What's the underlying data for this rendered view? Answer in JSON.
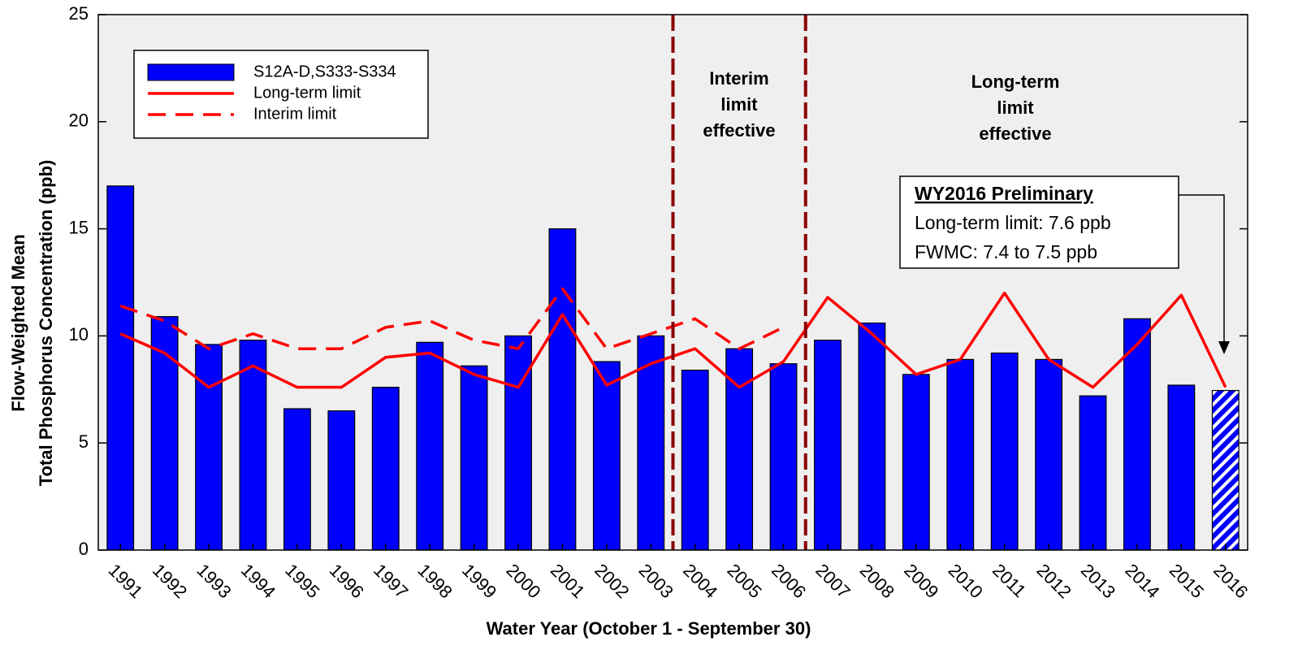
{
  "chart_data": {
    "type": "bar",
    "y_label": [
      "Flow-Weighted Mean",
      "Total Phosphorus Concentration (ppb)"
    ],
    "x_label": "Water Year (October 1 - September 30)",
    "categories": [
      "1991",
      "1992",
      "1993",
      "1994",
      "1995",
      "1996",
      "1997",
      "1998",
      "1999",
      "2000",
      "2001",
      "2002",
      "2003",
      "2004",
      "2005",
      "2006",
      "2007",
      "2008",
      "2009",
      "2010",
      "2011",
      "2012",
      "2013",
      "2014",
      "2015",
      "2016"
    ],
    "series": [
      {
        "name": "S12A-D,S333-S334",
        "type": "bar",
        "color": "#0000ff",
        "hatched_last": true,
        "values": [
          17.0,
          10.9,
          9.6,
          9.8,
          6.6,
          6.5,
          7.6,
          9.7,
          8.6,
          10.0,
          15.0,
          8.8,
          10.0,
          8.4,
          9.4,
          8.7,
          9.8,
          10.6,
          8.2,
          8.9,
          9.2,
          8.9,
          7.2,
          10.8,
          7.7,
          7.45
        ]
      },
      {
        "name": "Long-term limit",
        "type": "line",
        "dashed": false,
        "color": "#ff0000",
        "values": [
          10.1,
          9.2,
          7.6,
          8.6,
          7.6,
          7.6,
          9.0,
          9.2,
          8.2,
          7.6,
          11.0,
          7.7,
          8.7,
          9.4,
          7.6,
          8.8,
          11.8,
          10.1,
          8.2,
          8.9,
          12.0,
          8.9,
          7.6,
          9.6,
          11.9,
          7.6
        ]
      },
      {
        "name": "Interim limit",
        "type": "line",
        "dashed": true,
        "color": "#ff0000",
        "values": [
          11.4,
          10.7,
          9.4,
          10.1,
          9.4,
          9.4,
          10.4,
          10.7,
          9.8,
          9.4,
          12.2,
          9.4,
          10.1,
          10.8,
          9.4,
          10.4,
          null,
          null,
          null,
          null,
          null,
          null,
          null,
          null,
          null,
          null
        ]
      }
    ],
    "ylim": [
      0,
      25
    ],
    "yticks": [
      0,
      5,
      10,
      15,
      20,
      25
    ],
    "annotations": {
      "interim": [
        "Interim",
        "limit",
        "effective"
      ],
      "long_term": [
        "Long-term",
        "limit",
        "effective"
      ],
      "box": [
        "WY2016 Preliminary",
        "Long-term limit: 7.6 ppb",
        "FWMC: 7.4 to 7.5 ppb"
      ]
    }
  }
}
